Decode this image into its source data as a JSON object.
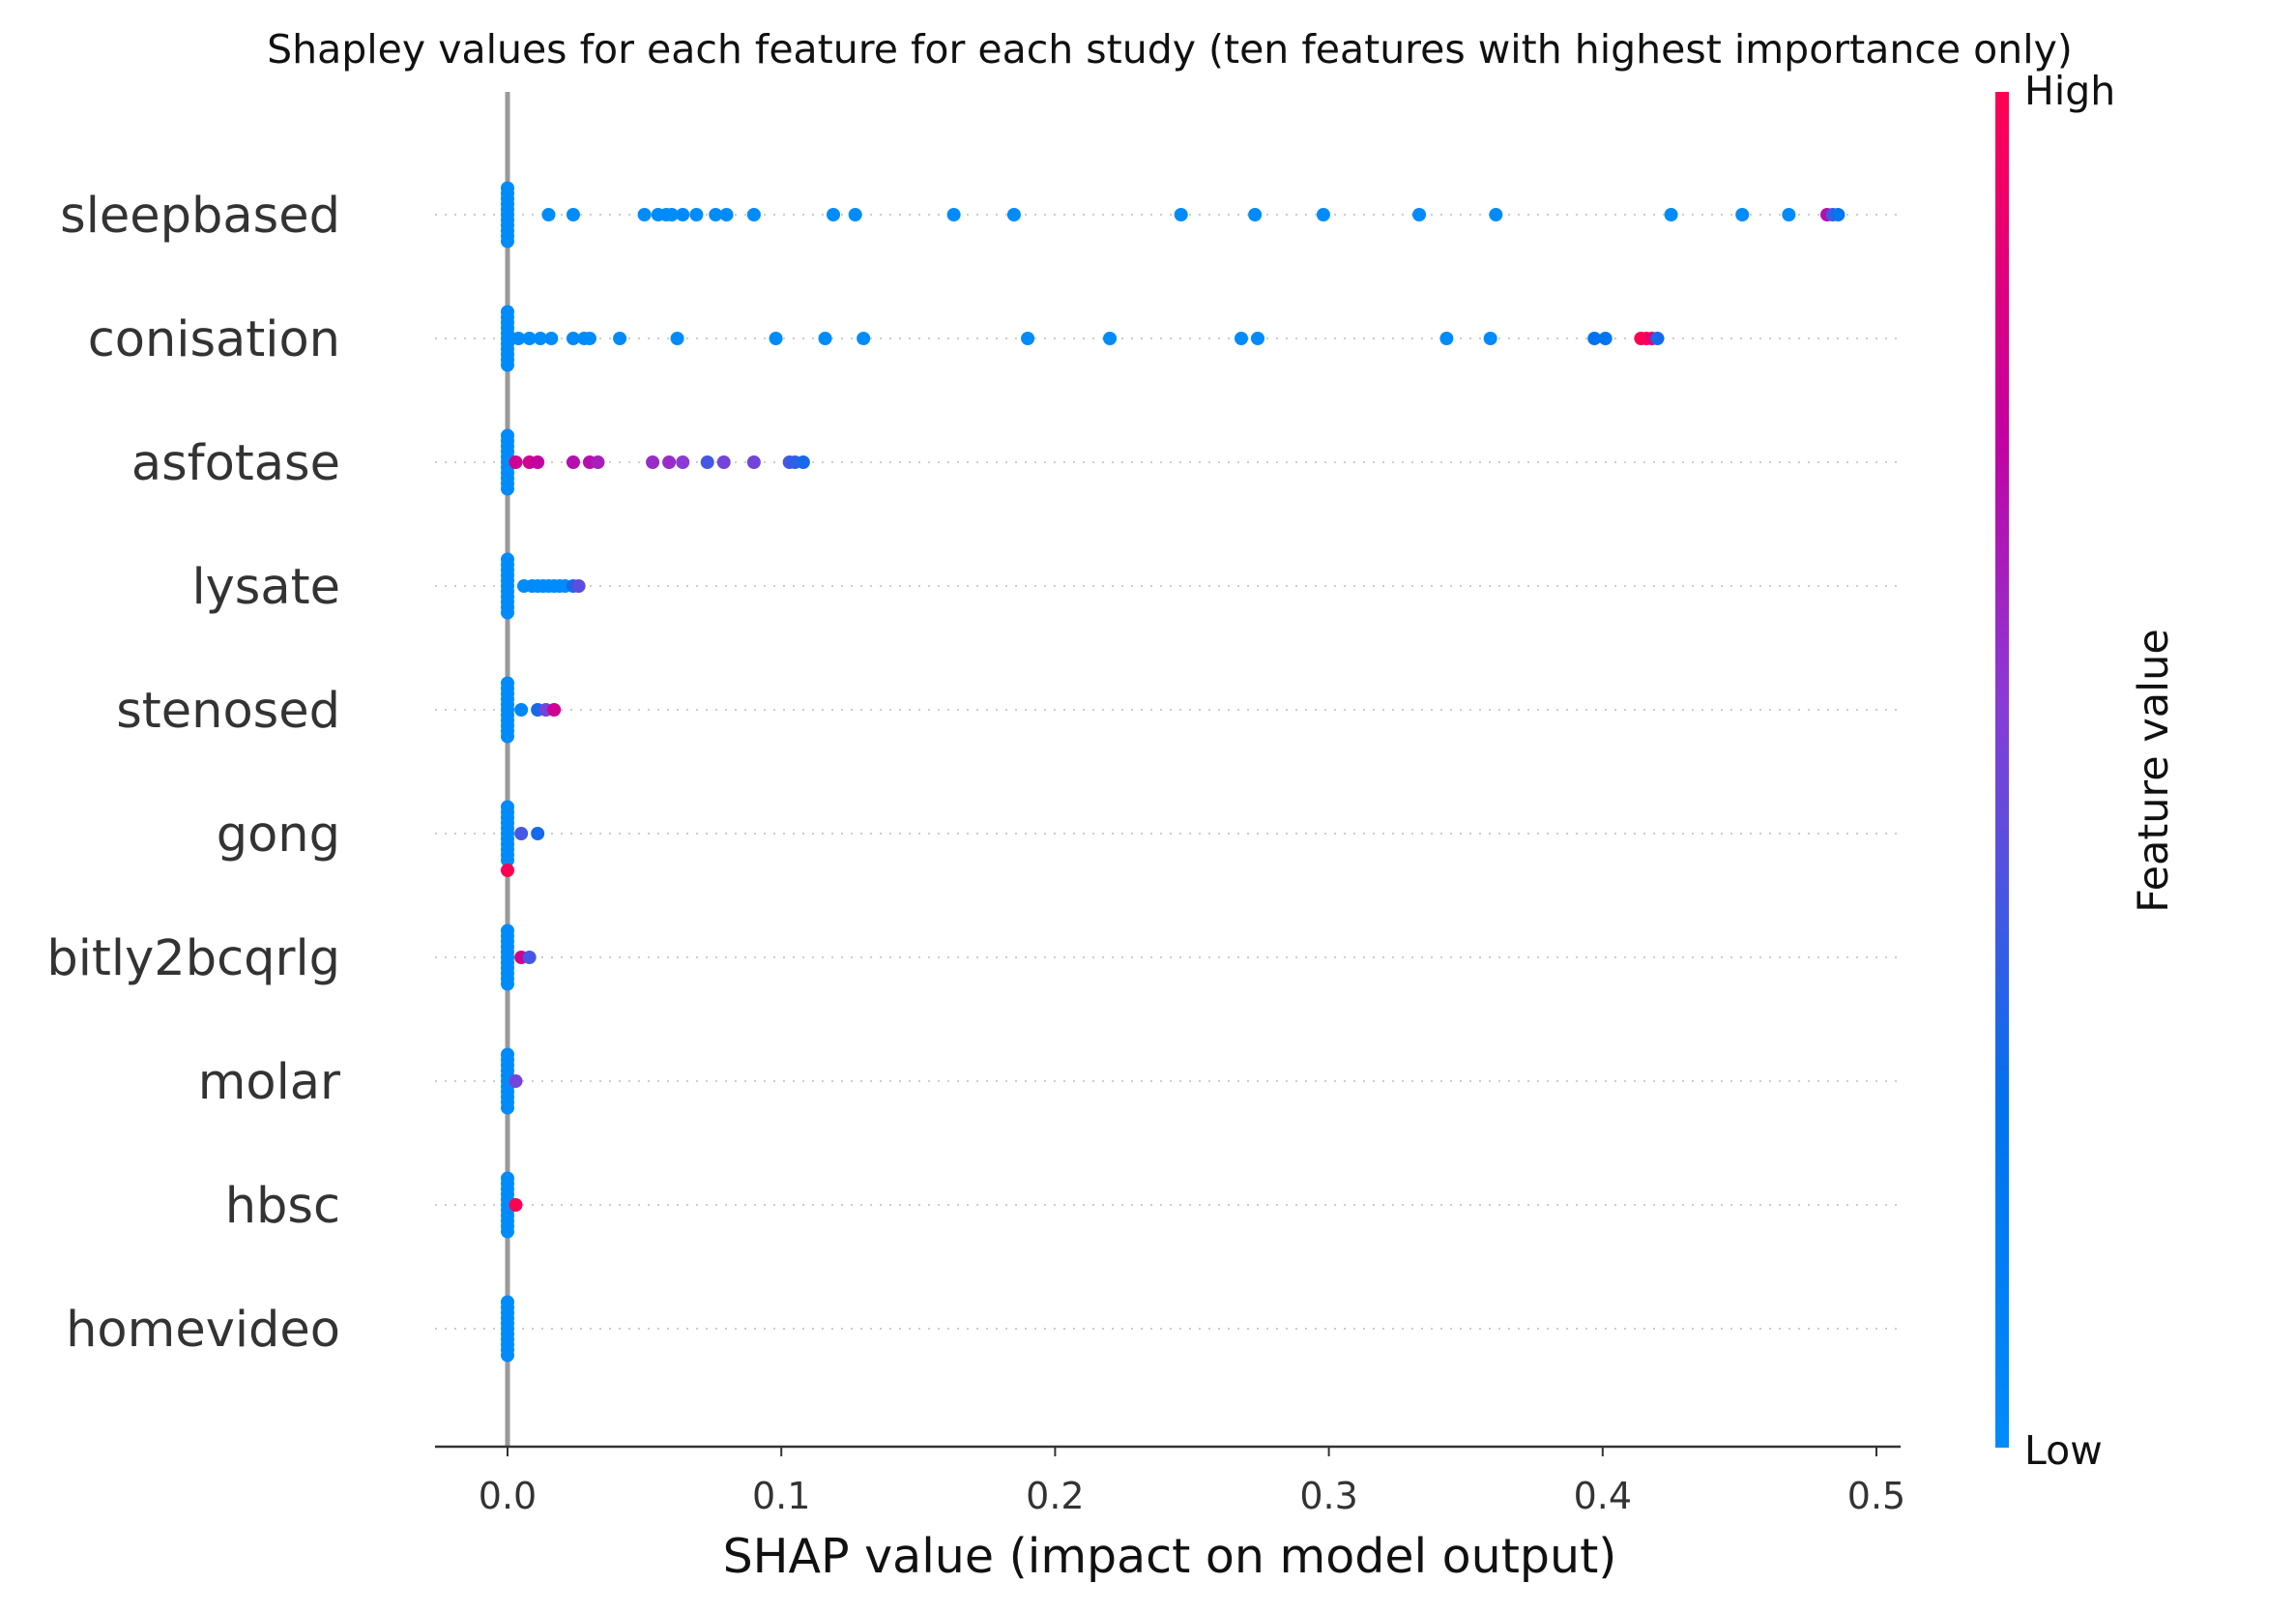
{
  "chart_data": {
    "type": "scatter",
    "title": "Shapley values for each feature for each study (ten features with highest importance only)",
    "xlabel": "SHAP value (impact on model output)",
    "ylabel": "",
    "xlim": [
      -0.026,
      0.512
    ],
    "x_ticks": [
      "0.0",
      "0.1",
      "0.2",
      "0.3",
      "0.4",
      "0.5"
    ],
    "x_tick_values": [
      0.0,
      0.1,
      0.2,
      0.3,
      0.4,
      0.5
    ],
    "grid": false,
    "colorbar": {
      "label": "Feature value",
      "high_label": "High",
      "low_label": "Low",
      "low_color": "#008bfb",
      "high_color": "#ff0052"
    },
    "features": [
      {
        "name": "sleepbased",
        "points": [
          [
            0.015,
            0
          ],
          [
            0.024,
            0
          ],
          [
            0.05,
            0
          ],
          [
            0.055,
            0
          ],
          [
            0.058,
            0
          ],
          [
            0.06,
            0
          ],
          [
            0.064,
            0
          ],
          [
            0.069,
            0
          ],
          [
            0.076,
            0
          ],
          [
            0.08,
            0
          ],
          [
            0.09,
            0
          ],
          [
            0.119,
            0
          ],
          [
            0.127,
            0
          ],
          [
            0.163,
            0
          ],
          [
            0.185,
            0
          ],
          [
            0.246,
            0
          ],
          [
            0.273,
            0
          ],
          [
            0.298,
            0
          ],
          [
            0.333,
            0
          ],
          [
            0.361,
            0
          ],
          [
            0.425,
            0
          ],
          [
            0.451,
            0
          ],
          [
            0.468,
            0
          ],
          [
            0.482,
            0.7
          ],
          [
            0.484,
            0.4
          ],
          [
            0.486,
            0.2
          ]
        ]
      },
      {
        "name": "conisation",
        "points": [
          [
            0.004,
            0
          ],
          [
            0.008,
            0
          ],
          [
            0.012,
            0
          ],
          [
            0.016,
            0
          ],
          [
            0.024,
            0
          ],
          [
            0.028,
            0
          ],
          [
            0.03,
            0
          ],
          [
            0.041,
            0
          ],
          [
            0.062,
            0
          ],
          [
            0.098,
            0
          ],
          [
            0.116,
            0
          ],
          [
            0.13,
            0
          ],
          [
            0.19,
            0
          ],
          [
            0.22,
            0
          ],
          [
            0.268,
            0
          ],
          [
            0.274,
            0
          ],
          [
            0.343,
            0
          ],
          [
            0.359,
            0
          ],
          [
            0.397,
            0.25
          ],
          [
            0.401,
            0.2
          ],
          [
            0.414,
            1
          ],
          [
            0.416,
            1
          ],
          [
            0.418,
            0.9
          ],
          [
            0.42,
            0.3
          ]
        ]
      },
      {
        "name": "asfotase",
        "points": [
          [
            0.003,
            0.8
          ],
          [
            0.008,
            0.8
          ],
          [
            0.011,
            0.75
          ],
          [
            0.024,
            0.7
          ],
          [
            0.03,
            0.7
          ],
          [
            0.033,
            0.65
          ],
          [
            0.053,
            0.6
          ],
          [
            0.059,
            0.6
          ],
          [
            0.064,
            0.55
          ],
          [
            0.073,
            0.4
          ],
          [
            0.079,
            0.5
          ],
          [
            0.09,
            0.5
          ],
          [
            0.103,
            0.4
          ],
          [
            0.105,
            0.35
          ],
          [
            0.108,
            0.3
          ]
        ]
      },
      {
        "name": "lysate",
        "points": [
          [
            0.006,
            0
          ],
          [
            0.009,
            0
          ],
          [
            0.011,
            0
          ],
          [
            0.013,
            0
          ],
          [
            0.015,
            0
          ],
          [
            0.017,
            0
          ],
          [
            0.019,
            0
          ],
          [
            0.021,
            0
          ],
          [
            0.024,
            0.3
          ],
          [
            0.026,
            0.45
          ]
        ]
      },
      {
        "name": "stenosed",
        "points": [
          [
            0.005,
            0.05
          ],
          [
            0.011,
            0.3
          ],
          [
            0.014,
            0.5
          ],
          [
            0.017,
            0.8
          ]
        ]
      },
      {
        "name": "gong",
        "points": [
          [
            0.005,
            0.4
          ],
          [
            0.011,
            0.3
          ]
        ]
      },
      {
        "name": "bitly2bcqrlg",
        "points": [
          [
            0.005,
            0.8
          ],
          [
            0.008,
            0.4
          ]
        ]
      },
      {
        "name": "molar",
        "points": [
          [
            0.003,
            0.5
          ]
        ]
      },
      {
        "name": "hbsc",
        "points": [
          [
            0.003,
            1
          ]
        ]
      },
      {
        "name": "homevideo",
        "points": []
      }
    ]
  }
}
